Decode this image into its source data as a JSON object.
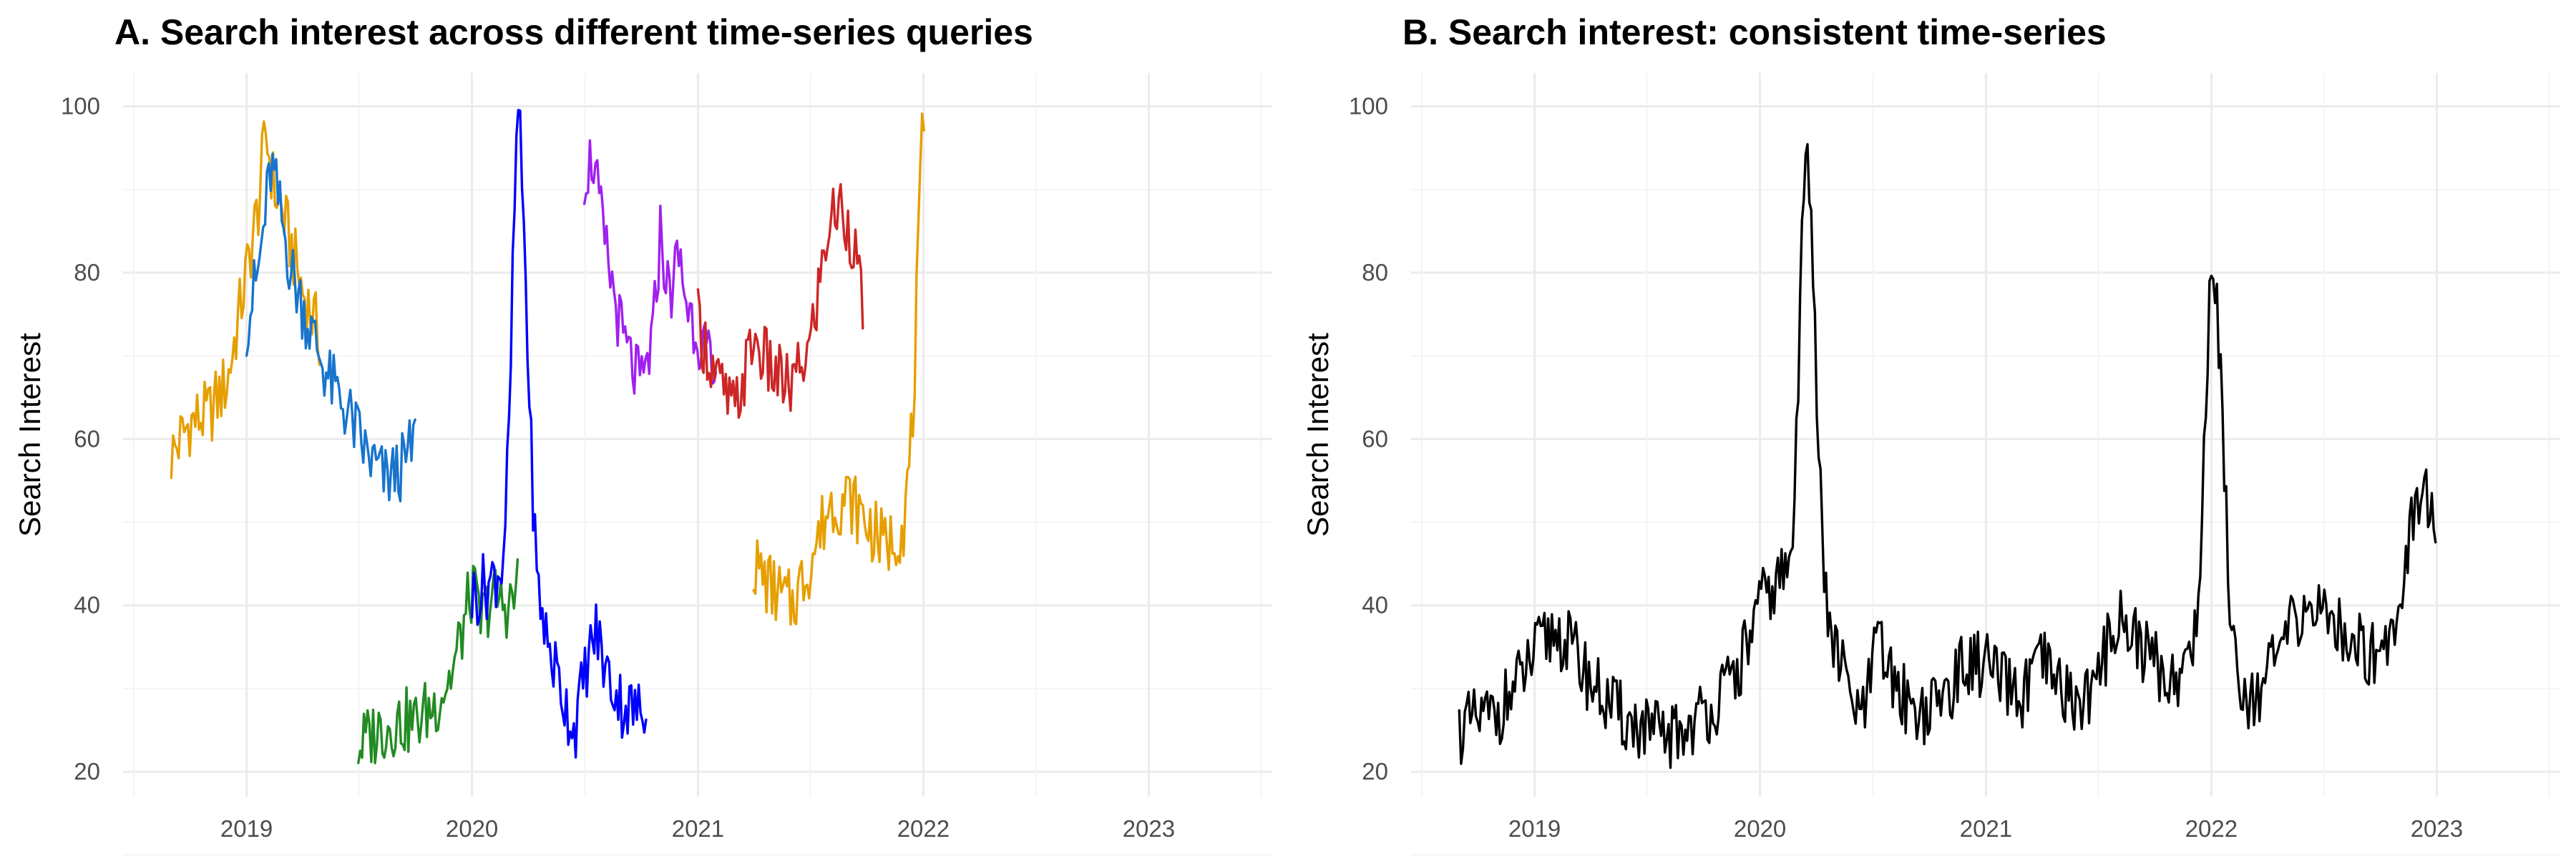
{
  "chart_data": [
    {
      "type": "line",
      "title": "A. Search interest across different time-series queries",
      "xlabel": "",
      "ylabel": "Search Interest",
      "x_unit": "date",
      "xlim": [
        "2018-06-15",
        "2023-07-20"
      ],
      "ylim": [
        17,
        104
      ],
      "x_ticks": [
        "2019",
        "2020",
        "2021",
        "2022",
        "2023"
      ],
      "y_ticks": [
        20,
        40,
        60,
        80,
        100
      ],
      "grid": true,
      "legend": "none",
      "series": [
        {
          "color": "#E69F00",
          "points": [
            [
              "2018-09-01",
              58
            ],
            [
              "2018-10-01",
              62
            ],
            [
              "2018-11-01",
              63
            ],
            [
              "2018-12-01",
              67
            ],
            [
              "2019-01-01",
              80
            ],
            [
              "2019-01-20",
              88
            ],
            [
              "2019-02-01",
              97
            ],
            [
              "2019-02-15",
              90
            ],
            [
              "2019-03-01",
              87
            ],
            [
              "2019-04-01",
              78
            ],
            [
              "2019-05-01",
              72
            ]
          ]
        },
        {
          "color": "#1874CD",
          "points": [
            [
              "2019-01-01",
              74
            ],
            [
              "2019-01-20",
              80
            ],
            [
              "2019-02-10",
              93
            ],
            [
              "2019-02-25",
              87
            ],
            [
              "2019-03-15",
              80
            ],
            [
              "2019-04-15",
              73
            ],
            [
              "2019-05-15",
              67
            ],
            [
              "2019-06-15",
              63
            ],
            [
              "2019-07-15",
              58
            ],
            [
              "2019-08-15",
              55
            ],
            [
              "2019-09-15",
              57
            ],
            [
              "2019-10-01",
              60
            ]
          ]
        },
        {
          "color": "#228B22",
          "points": [
            [
              "2019-07-01",
              23
            ],
            [
              "2019-08-01",
              25
            ],
            [
              "2019-09-01",
              26
            ],
            [
              "2019-10-01",
              26
            ],
            [
              "2019-11-01",
              28
            ],
            [
              "2019-12-01",
              32
            ],
            [
              "2020-01-01",
              42
            ],
            [
              "2020-01-15",
              38
            ],
            [
              "2020-02-01",
              41
            ],
            [
              "2020-03-01",
              40
            ],
            [
              "2020-03-15",
              42
            ]
          ]
        },
        {
          "color": "#0000FF",
          "points": [
            [
              "2020-01-01",
              41
            ],
            [
              "2020-02-01",
              43
            ],
            [
              "2020-02-20",
              45
            ],
            [
              "2020-03-01",
              60
            ],
            [
              "2020-03-10",
              88
            ],
            [
              "2020-03-16",
              100
            ],
            [
              "2020-03-24",
              88
            ],
            [
              "2020-04-05",
              60
            ],
            [
              "2020-04-15",
              43
            ],
            [
              "2020-05-01",
              36
            ],
            [
              "2020-06-01",
              28
            ],
            [
              "2020-06-15",
              25
            ],
            [
              "2020-07-05",
              33
            ],
            [
              "2020-07-20",
              37
            ],
            [
              "2020-08-05",
              32
            ],
            [
              "2020-09-01",
              28
            ],
            [
              "2020-10-01",
              27
            ],
            [
              "2020-10-10",
              29
            ]
          ]
        },
        {
          "color": "#A020F0",
          "points": [
            [
              "2020-07-01",
              92
            ],
            [
              "2020-07-15",
              94
            ],
            [
              "2020-08-01",
              84
            ],
            [
              "2020-09-01",
              72
            ],
            [
              "2020-10-01",
              66
            ],
            [
              "2020-10-20",
              72
            ],
            [
              "2020-11-01",
              85
            ],
            [
              "2020-11-15",
              77
            ],
            [
              "2020-12-01",
              82
            ],
            [
              "2020-12-15",
              76
            ],
            [
              "2021-01-01",
              73
            ],
            [
              "2021-01-15",
              70
            ],
            [
              "2021-02-01",
              64
            ]
          ]
        },
        {
          "color": "#CD2626",
          "points": [
            [
              "2021-01-01",
              74
            ],
            [
              "2021-02-01",
              67
            ],
            [
              "2021-03-01",
              63
            ],
            [
              "2021-04-01",
              72
            ],
            [
              "2021-05-01",
              68
            ],
            [
              "2021-06-01",
              66
            ],
            [
              "2021-07-01",
              71
            ],
            [
              "2021-08-01",
              86
            ],
            [
              "2021-08-20",
              88
            ],
            [
              "2021-09-10",
              84
            ],
            [
              "2021-09-25",
              75
            ]
          ]
        },
        {
          "color": "#E69F00",
          "points": [
            [
              "2021-04-01",
              45
            ],
            [
              "2021-05-01",
              42
            ],
            [
              "2021-06-01",
              40
            ],
            [
              "2021-07-01",
              45
            ],
            [
              "2021-08-01",
              52
            ],
            [
              "2021-09-01",
              53
            ],
            [
              "2021-10-01",
              50
            ],
            [
              "2021-11-01",
              47
            ],
            [
              "2021-12-01",
              50
            ],
            [
              "2021-12-15",
              62
            ],
            [
              "2021-12-25",
              85
            ],
            [
              "2022-01-01",
              99
            ],
            [
              "2022-01-03",
              88
            ]
          ]
        }
      ]
    },
    {
      "type": "line",
      "title": "B. Search interest: consistent time-series",
      "xlabel": "",
      "ylabel": "Search Interest",
      "x_unit": "date",
      "xlim": [
        "2018-06-15",
        "2023-07-20"
      ],
      "ylim": [
        17,
        104
      ],
      "x_ticks": [
        "2019",
        "2020",
        "2021",
        "2022",
        "2023"
      ],
      "y_ticks": [
        20,
        40,
        60,
        80,
        100
      ],
      "grid": true,
      "legend": "none",
      "series": [
        {
          "color": "#000000",
          "points": [
            [
              "2018-09-01",
              25
            ],
            [
              "2018-10-01",
              26
            ],
            [
              "2018-11-01",
              27
            ],
            [
              "2018-12-01",
              30
            ],
            [
              "2019-01-01",
              34
            ],
            [
              "2019-02-01",
              37
            ],
            [
              "2019-03-01",
              35
            ],
            [
              "2019-04-01",
              31
            ],
            [
              "2019-05-01",
              28
            ],
            [
              "2019-06-01",
              26
            ],
            [
              "2019-07-01",
              25
            ],
            [
              "2019-08-01",
              24
            ],
            [
              "2019-09-01",
              25
            ],
            [
              "2019-10-01",
              27
            ],
            [
              "2019-11-01",
              29
            ],
            [
              "2019-12-01",
              33
            ],
            [
              "2020-01-01",
              40
            ],
            [
              "2020-02-01",
              43
            ],
            [
              "2020-02-20",
              45
            ],
            [
              "2020-03-01",
              60
            ],
            [
              "2020-03-10",
              88
            ],
            [
              "2020-03-16",
              100
            ],
            [
              "2020-03-24",
              88
            ],
            [
              "2020-04-05",
              58
            ],
            [
              "2020-04-15",
              41
            ],
            [
              "2020-05-01",
              35
            ],
            [
              "2020-06-01",
              28
            ],
            [
              "2020-06-15",
              26
            ],
            [
              "2020-07-10",
              36
            ],
            [
              "2020-08-01",
              31
            ],
            [
              "2020-09-01",
              28
            ],
            [
              "2020-10-01",
              27
            ],
            [
              "2020-11-01",
              30
            ],
            [
              "2020-12-01",
              33
            ],
            [
              "2021-01-01",
              33
            ],
            [
              "2021-02-01",
              30
            ],
            [
              "2021-03-01",
              29
            ],
            [
              "2021-04-01",
              33
            ],
            [
              "2021-05-01",
              30
            ],
            [
              "2021-06-01",
              28
            ],
            [
              "2021-07-01",
              31
            ],
            [
              "2021-08-01",
              39
            ],
            [
              "2021-09-01",
              36
            ],
            [
              "2021-10-01",
              33
            ],
            [
              "2021-11-01",
              31
            ],
            [
              "2021-12-01",
              34
            ],
            [
              "2021-12-15",
              45
            ],
            [
              "2021-12-25",
              70
            ],
            [
              "2022-01-01",
              82
            ],
            [
              "2022-01-10",
              76
            ],
            [
              "2022-01-20",
              60
            ],
            [
              "2022-02-01",
              40
            ],
            [
              "2022-02-15",
              31
            ],
            [
              "2022-03-01",
              29
            ],
            [
              "2022-04-01",
              31
            ],
            [
              "2022-05-01",
              36
            ],
            [
              "2022-06-01",
              40
            ],
            [
              "2022-07-01",
              39
            ],
            [
              "2022-08-01",
              37
            ],
            [
              "2022-09-01",
              35
            ],
            [
              "2022-10-01",
              34
            ],
            [
              "2022-11-01",
              40
            ],
            [
              "2022-11-20",
              50
            ],
            [
              "2022-12-10",
              56
            ],
            [
              "2022-12-25",
              50
            ],
            [
              "2023-01-01",
              45
            ]
          ]
        }
      ]
    }
  ]
}
